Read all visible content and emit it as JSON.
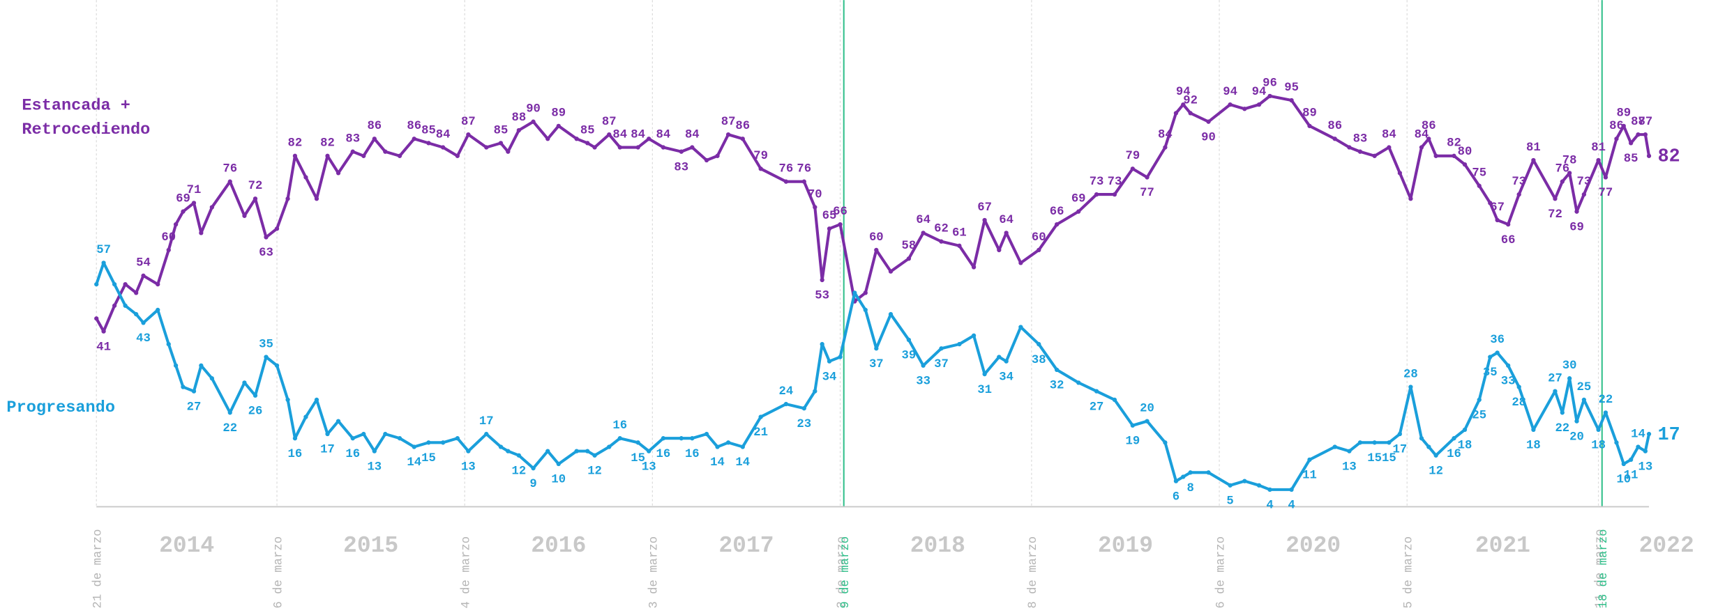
{
  "chart_data": {
    "type": "line",
    "x": [
      0,
      2,
      5,
      8,
      11,
      13,
      17,
      20,
      22,
      24,
      27,
      29,
      32,
      37,
      41,
      44,
      47,
      50,
      53,
      55,
      58,
      61,
      64,
      67,
      71,
      74,
      77,
      80,
      84,
      88,
      92,
      96,
      100,
      103,
      108,
      112,
      114,
      117,
      121,
      125,
      128,
      133,
      136,
      138,
      142,
      145,
      150,
      153,
      157,
      162,
      165,
      169,
      172,
      175,
      179,
      184,
      191,
      196,
      199,
      201,
      203,
      206,
      210,
      213,
      216,
      220,
      225,
      229,
      234,
      239,
      243,
      246,
      250,
      252,
      256,
      261,
      266,
      272,
      277,
      282,
      287,
      291,
      296,
      299,
      301,
      303,
      308,
      314,
      318,
      322,
      325,
      331,
      336,
      343,
      347,
      350,
      354,
      358,
      361,
      364,
      367,
      369,
      371,
      376,
      379,
      383,
      386,
      388,
      391,
      394,
      398,
      404,
      406,
      408,
      410,
      412,
      416,
      418,
      421,
      423,
      425,
      427,
      429,
      430
    ],
    "xlim": [
      0,
      430
    ],
    "xticks": [
      {
        "value": 0,
        "label": "21 de marzo"
      },
      {
        "value": 50,
        "label": "6 de marzo"
      },
      {
        "value": 102,
        "label": "4 de marzo"
      },
      {
        "value": 154,
        "label": "3 de marzo"
      },
      {
        "value": 206,
        "label": "2 de marzo"
      },
      {
        "value": 207,
        "label": "9 de marzo",
        "color": "#2fbf8a"
      },
      {
        "value": 259,
        "label": "8 de marzo"
      },
      {
        "value": 311,
        "label": "6 de marzo"
      },
      {
        "value": 363,
        "label": "5 de marzo"
      },
      {
        "value": 416,
        "label": "11 de marzo"
      },
      {
        "value": 417,
        "label": "18 de marzo",
        "color": "#2fbf8a"
      }
    ],
    "periods": [
      "2014",
      "2015",
      "2016",
      "2017",
      "2018",
      "2019",
      "2020",
      "2021",
      "2022"
    ],
    "ylim": [
      0,
      100
    ],
    "series": [
      {
        "name": "Estancada + Retrocediendo",
        "color": "#7b2ca6",
        "values": [
          44,
          41,
          47,
          52,
          50,
          54,
          52,
          60,
          66,
          69,
          71,
          64,
          70,
          76,
          68,
          72,
          63,
          65,
          72,
          82,
          77,
          72,
          82,
          78,
          83,
          82,
          86,
          83,
          82,
          86,
          85,
          84,
          82,
          87,
          84,
          85,
          83,
          88,
          90,
          86,
          89,
          86,
          85,
          84,
          87,
          84,
          84,
          86,
          84,
          83,
          84,
          81,
          82,
          87,
          86,
          79,
          76,
          76,
          70,
          53,
          65,
          66,
          48,
          50,
          60,
          55,
          58,
          64,
          62,
          61,
          56,
          67,
          60,
          64,
          57,
          60,
          66,
          69,
          73,
          73,
          79,
          77,
          84,
          92,
          94,
          92,
          90,
          94,
          93,
          94,
          96,
          95,
          89,
          86,
          84,
          83,
          82,
          84,
          78,
          72,
          84,
          86,
          82,
          82,
          80,
          75,
          71,
          67,
          66,
          73,
          81,
          72,
          76,
          78,
          69,
          73,
          81,
          77,
          86,
          89,
          85,
          87,
          87,
          82
        ],
        "labeled": [
          false,
          true,
          false,
          false,
          false,
          true,
          false,
          true,
          false,
          true,
          true,
          false,
          false,
          true,
          false,
          true,
          true,
          false,
          false,
          true,
          false,
          false,
          true,
          false,
          true,
          false,
          true,
          false,
          false,
          true,
          true,
          true,
          false,
          true,
          false,
          true,
          false,
          true,
          true,
          false,
          true,
          false,
          true,
          false,
          true,
          true,
          true,
          false,
          true,
          true,
          true,
          false,
          false,
          true,
          true,
          true,
          true,
          true,
          true,
          true,
          true,
          true,
          false,
          false,
          true,
          false,
          true,
          true,
          true,
          true,
          false,
          true,
          false,
          true,
          false,
          true,
          true,
          true,
          true,
          true,
          true,
          true,
          true,
          false,
          true,
          true,
          true,
          true,
          false,
          true,
          true,
          true,
          true,
          true,
          false,
          true,
          false,
          true,
          false,
          false,
          true,
          true,
          false,
          true,
          true,
          true,
          false,
          true,
          true,
          true,
          true,
          true,
          true,
          true,
          true,
          true,
          true,
          true,
          true,
          true,
          true,
          true,
          true,
          true
        ]
      },
      {
        "name": "Progresando",
        "color": "#1a9fdb",
        "values": [
          52,
          57,
          52,
          47,
          45,
          43,
          46,
          38,
          33,
          28,
          27,
          33,
          30,
          22,
          29,
          26,
          35,
          33,
          25,
          16,
          21,
          25,
          17,
          20,
          16,
          17,
          13,
          17,
          16,
          14,
          15,
          15,
          16,
          13,
          17,
          14,
          13,
          12,
          9,
          13,
          10,
          13,
          13,
          12,
          14,
          16,
          15,
          13,
          16,
          16,
          16,
          17,
          14,
          15,
          14,
          21,
          24,
          23,
          27,
          38,
          34,
          35,
          50,
          46,
          37,
          45,
          39,
          33,
          37,
          38,
          40,
          31,
          35,
          34,
          42,
          38,
          32,
          29,
          27,
          25,
          19,
          20,
          15,
          6,
          7,
          8,
          8,
          5,
          6,
          5,
          4,
          4,
          11,
          14,
          13,
          15,
          15,
          15,
          17,
          28,
          16,
          14,
          12,
          16,
          18,
          25,
          35,
          36,
          33,
          28,
          18,
          27,
          22,
          30,
          20,
          25,
          18,
          22,
          15,
          10,
          11,
          14,
          13,
          17
        ],
        "labeled": [
          false,
          true,
          false,
          false,
          false,
          true,
          false,
          false,
          false,
          false,
          true,
          false,
          false,
          true,
          false,
          true,
          true,
          false,
          false,
          true,
          false,
          false,
          true,
          false,
          true,
          false,
          true,
          false,
          false,
          true,
          true,
          false,
          false,
          true,
          true,
          false,
          false,
          true,
          true,
          false,
          true,
          false,
          false,
          true,
          false,
          true,
          true,
          true,
          true,
          false,
          true,
          false,
          true,
          false,
          true,
          true,
          true,
          true,
          false,
          false,
          true,
          false,
          false,
          false,
          true,
          false,
          true,
          true,
          true,
          false,
          false,
          true,
          false,
          true,
          false,
          true,
          true,
          false,
          true,
          false,
          true,
          true,
          false,
          true,
          false,
          true,
          false,
          true,
          false,
          false,
          true,
          true,
          true,
          false,
          true,
          false,
          true,
          true,
          true,
          true,
          false,
          false,
          true,
          true,
          true,
          true,
          true,
          true,
          true,
          true,
          true,
          true,
          true,
          true,
          true,
          true,
          true,
          true,
          false,
          true,
          true,
          true,
          true,
          true
        ]
      }
    ]
  }
}
